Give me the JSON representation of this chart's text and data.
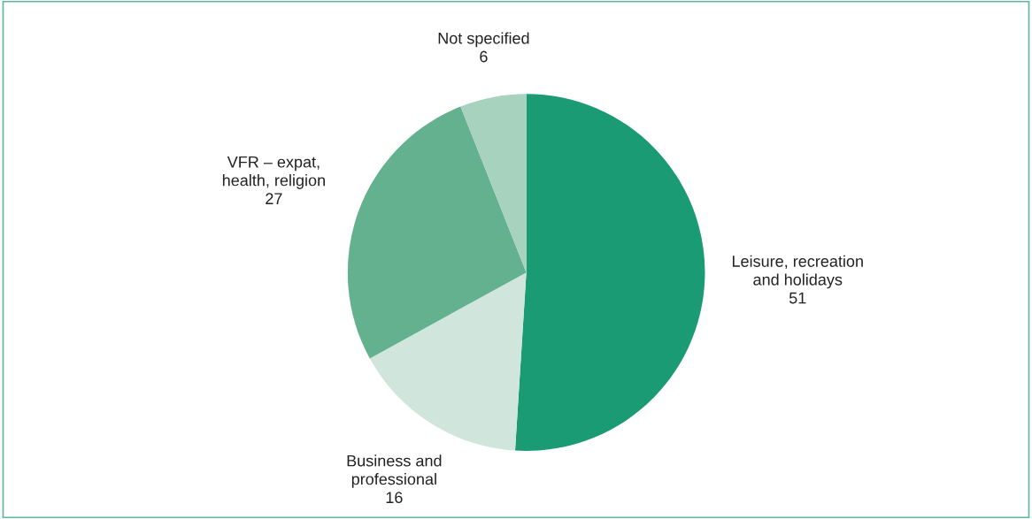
{
  "chart_data": {
    "type": "pie",
    "categories": [
      "Leisure, recreation\nand holidays",
      "Business and\nprofessional",
      "VFR – expat,\nhealth, religion",
      "Not specified"
    ],
    "values": [
      51,
      16,
      27,
      6
    ],
    "colors": [
      "#1a9b73",
      "#d0e6dd",
      "#63b18f",
      "#a7d2bd"
    ],
    "data_labels": true
  }
}
